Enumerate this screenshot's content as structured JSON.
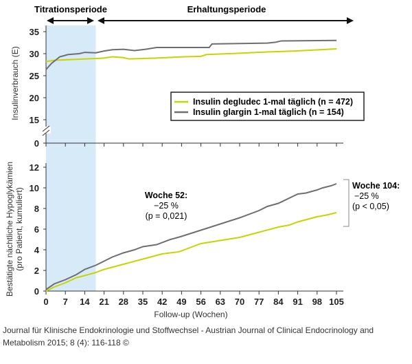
{
  "chart_data": [
    {
      "type": "line",
      "ylabel": "Insulinverbrauch (E)",
      "xlim": [
        0,
        105
      ],
      "ylim": [
        0,
        35
      ],
      "y_ticks": [
        0,
        15,
        20,
        25,
        30,
        35
      ],
      "axis_break": true,
      "period_labels": [
        "Titrationsperiode",
        "Erhaltungsperiode"
      ],
      "shaded_period_weeks": [
        0,
        18
      ],
      "legend": {
        "position": "inside-lower-right",
        "entries": [
          "Insulin degludec 1-mal täglich (n = 472)",
          "Insulin glargin 1-mal täglich (n = 154)"
        ]
      },
      "series": [
        {
          "name": "Insulin degludec 1-mal täglich (n = 472)",
          "color": "#c8d400",
          "x": [
            0,
            3,
            10,
            18,
            21,
            24,
            28,
            30,
            40,
            50,
            56,
            58,
            70,
            80,
            90,
            105
          ],
          "y": [
            28.2,
            28.5,
            28.7,
            28.9,
            29.0,
            29.3,
            29.1,
            28.8,
            29.0,
            29.3,
            29.4,
            29.8,
            30.1,
            30.4,
            30.6,
            31.1
          ]
        },
        {
          "name": "Insulin glargin 1-mal täglich (n = 154)",
          "color": "#6d6e71",
          "x": [
            0,
            2,
            5,
            8,
            12,
            14,
            18,
            21,
            24,
            28,
            32,
            36,
            40,
            59,
            60,
            80,
            83,
            85,
            105
          ],
          "y": [
            26.4,
            27.8,
            29.3,
            29.8,
            30.0,
            30.3,
            30.2,
            30.6,
            30.9,
            31.0,
            30.7,
            31.0,
            31.4,
            31.4,
            32.2,
            32.4,
            32.6,
            32.9,
            33.0
          ]
        }
      ]
    },
    {
      "type": "line",
      "ylabel": "Bestätigte nächtliche Hypoglykämien",
      "ylabel2": "(pro Patient, kumuliert)",
      "xlabel": "Follow-up (Wochen)",
      "xlim": [
        0,
        105
      ],
      "ylim": [
        0,
        12
      ],
      "x_ticks": [
        0,
        7,
        14,
        21,
        28,
        35,
        42,
        49,
        56,
        63,
        70,
        77,
        84,
        91,
        98,
        105
      ],
      "y_ticks": [
        0,
        2,
        4,
        6,
        8,
        10,
        12
      ],
      "annotations": [
        {
          "title": "Woche 52:",
          "lines": [
            "−25 %",
            "(p = 0,021)"
          ]
        },
        {
          "title": "Woche 104:",
          "lines": [
            "−25 %",
            "(p < 0,05)"
          ]
        }
      ],
      "series": [
        {
          "name": "Insulin glargin 1-mal täglich (n = 154)",
          "color": "#6d6e71",
          "x": [
            0,
            3,
            7,
            11,
            14,
            18,
            21,
            24,
            28,
            32,
            35,
            40,
            45,
            49,
            56,
            63,
            70,
            77,
            80,
            84,
            91,
            94,
            98,
            100,
            103,
            105
          ],
          "y": [
            0.15,
            0.7,
            1.1,
            1.6,
            2.1,
            2.5,
            2.9,
            3.3,
            3.7,
            4.0,
            4.3,
            4.5,
            5.0,
            5.3,
            5.9,
            6.5,
            7.1,
            7.8,
            8.2,
            8.5,
            9.4,
            9.5,
            9.8,
            10.0,
            10.2,
            10.4
          ]
        },
        {
          "name": "Insulin degludec 1-mal täglich (n = 472)",
          "color": "#c8d400",
          "x": [
            0,
            3,
            7,
            11,
            14,
            18,
            21,
            28,
            35,
            42,
            48,
            52,
            56,
            63,
            70,
            77,
            84,
            88,
            91,
            98,
            102,
            105
          ],
          "y": [
            0,
            0.4,
            0.8,
            1.3,
            1.5,
            1.8,
            2.1,
            2.6,
            3.1,
            3.6,
            3.8,
            4.2,
            4.6,
            4.9,
            5.2,
            5.7,
            6.2,
            6.4,
            6.7,
            7.2,
            7.4,
            7.6
          ]
        }
      ]
    }
  ],
  "footer": "Journal für Klinische Endokrinologie und Stoffwechsel - Austrian Journal of Clinical Endocrinology and Metabolism 2015; 8 (4): 116-118 ©",
  "colors": {
    "shade": "#d6eaf8",
    "axis": "#333333"
  }
}
